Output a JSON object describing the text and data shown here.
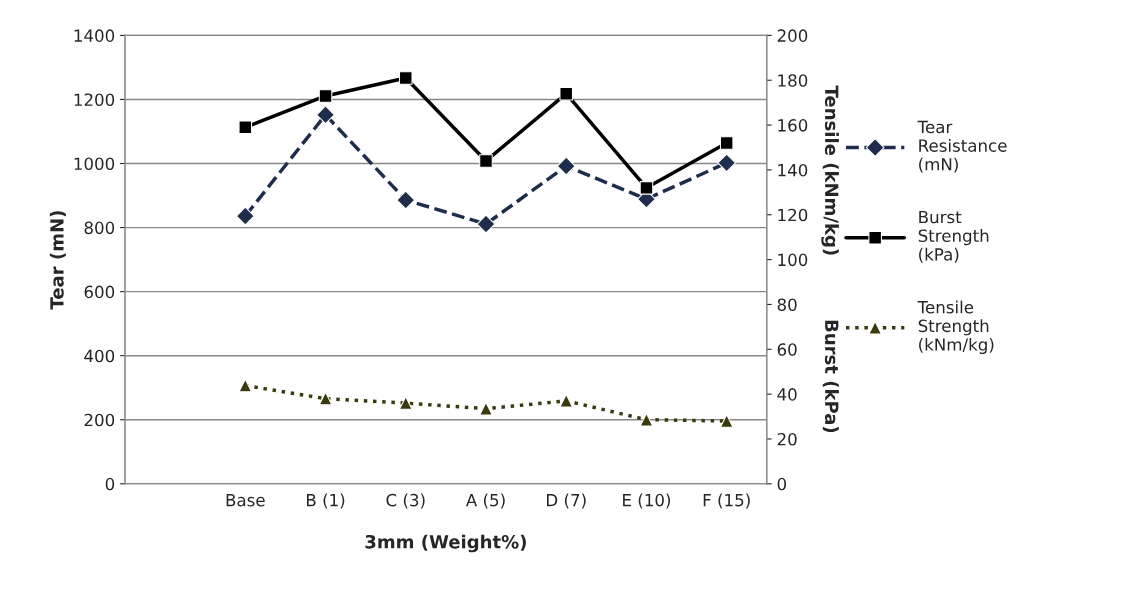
{
  "chart_data": {
    "type": "line",
    "xlabel": "3mm (Weight%)",
    "ylabel": "Tear (mN)",
    "y2label": "Tensile (kNm/kg)          Burst (kPa)",
    "categories": [
      null,
      "Base",
      "B (1)",
      "C (3)",
      "A (5)",
      "D (7)",
      "E (10)",
      "F (15)"
    ],
    "series": [
      {
        "name": "Tear\nResistance\n(mN)",
        "color": "#1f2d4d",
        "values": [
          null,
          836,
          1152,
          886,
          811,
          992,
          889,
          1002
        ],
        "marker": "diamond",
        "line_style": "dashed"
      },
      {
        "name": "Burst\nStrength\n(kPa)",
        "color": "#000000",
        "axis": "y2",
        "values": [
          null,
          159,
          173,
          181,
          144,
          174,
          132,
          152
        ],
        "marker": "square",
        "line_style": "solid"
      },
      {
        "name": "Tensile\nStrength\n(kNm/kg)",
        "color": "#3a3a10",
        "axis": "y2",
        "values": [
          null,
          43.8,
          38,
          36,
          33.5,
          37,
          28.6,
          28
        ],
        "marker": "triangle",
        "line_style": "dotted"
      }
    ],
    "ylim": [
      0,
      1400
    ],
    "yticks": [
      0,
      200,
      400,
      600,
      800,
      1000,
      1200,
      1400
    ],
    "y2lim": [
      0,
      200
    ],
    "y2ticks": [
      0,
      20,
      40,
      60,
      80,
      100,
      120,
      140,
      160,
      180,
      200
    ],
    "grid": "y",
    "legend": "right"
  }
}
